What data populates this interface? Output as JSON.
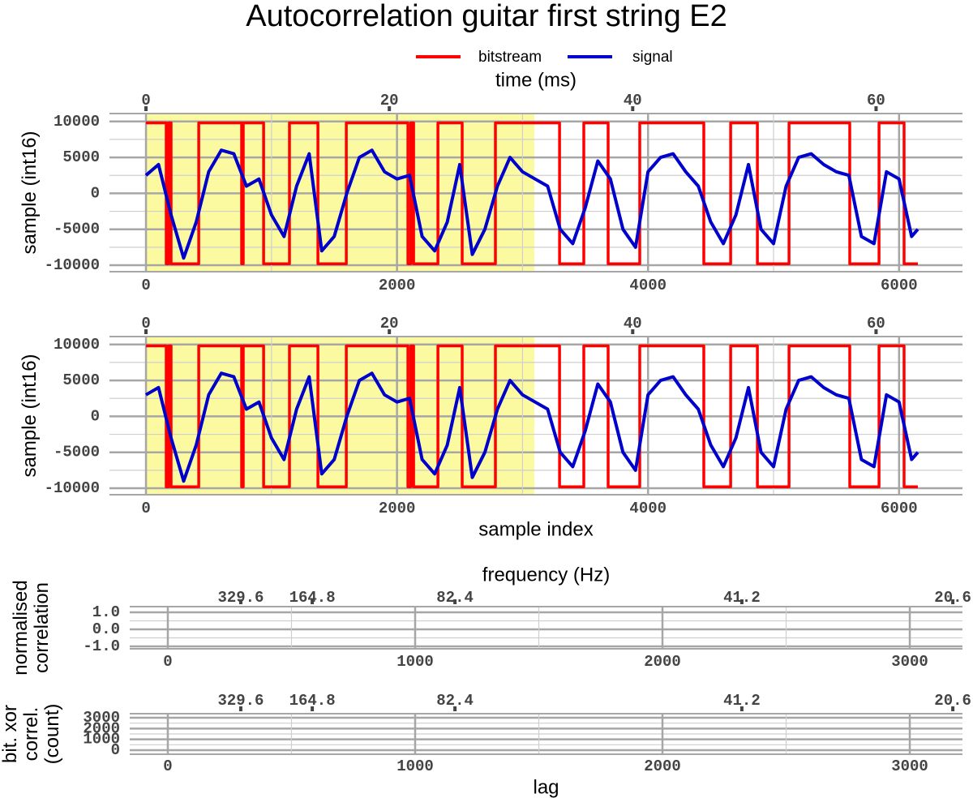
{
  "chart_data": [
    {
      "type": "line",
      "title": "Autocorrelation guitar first string E2",
      "legend": "top",
      "x2_label": "time (ms)",
      "y_label": [
        "sample (int16)"
      ],
      "xlim": [
        -291,
        6505
      ],
      "xticks": [
        0,
        2000,
        4000,
        6000
      ],
      "x2lim": [
        -3.0,
        67.1
      ],
      "x2ticks": [
        0,
        20,
        40,
        60
      ],
      "ylim": [
        -10900,
        11100
      ],
      "yticks": [
        -10000,
        -5000,
        0,
        5000,
        10000
      ],
      "grid": true,
      "shaded_range": [
        0,
        3094
      ],
      "shaded_color": "#fbfaa0",
      "series": [
        {
          "name": "bitstream",
          "color": "#ff0000",
          "x": [
            0,
            161,
            161,
            180,
            180,
            200,
            200,
            420,
            420,
            762,
            762,
            775,
            775,
            937,
            937,
            1143,
            1143,
            1370,
            1370,
            1596,
            1596,
            2087,
            2087,
            2110,
            2110,
            2132,
            2132,
            2326,
            2326,
            2519,
            2519,
            2784,
            2784,
            3295,
            3295,
            3488,
            3488,
            3682,
            3682,
            3934,
            3934,
            4444,
            4444,
            4658,
            4658,
            4871,
            4871,
            5123,
            5123,
            5607,
            5607,
            5840,
            5840,
            6040,
            6040,
            6150
          ],
          "values": [
            9800,
            9800,
            -9800,
            -9800,
            9800,
            9800,
            -9800,
            -9800,
            9800,
            9800,
            -9800,
            -9800,
            9800,
            9800,
            -9800,
            -9800,
            9800,
            9800,
            -9800,
            -9800,
            9800,
            9800,
            -9800,
            -9800,
            9800,
            9800,
            -9800,
            -9800,
            9800,
            9800,
            -9800,
            -9800,
            9800,
            9800,
            -9800,
            -9800,
            9800,
            9800,
            -9800,
            -9800,
            9800,
            9800,
            -9800,
            -9800,
            9800,
            9800,
            -9800,
            -9800,
            9800,
            9800,
            -9800,
            -9800,
            9800,
            9800,
            -9800,
            -9800
          ]
        },
        {
          "name": "signal",
          "color": "#0000cc",
          "x": [
            0,
            100,
            200,
            300,
            400,
            500,
            600,
            700,
            800,
            900,
            1000,
            1100,
            1200,
            1300,
            1400,
            1500,
            1600,
            1700,
            1800,
            1900,
            2000,
            2100,
            2200,
            2300,
            2400,
            2500,
            2600,
            2700,
            2800,
            2900,
            3000,
            3100,
            3200,
            3300,
            3400,
            3500,
            3600,
            3700,
            3800,
            3900,
            4000,
            4100,
            4200,
            4300,
            4400,
            4500,
            4600,
            4700,
            4800,
            4900,
            5000,
            5100,
            5200,
            5300,
            5400,
            5500,
            5600,
            5700,
            5800,
            5900,
            6000,
            6100,
            6150
          ],
          "values": [
            2500,
            4000,
            -3000,
            -9000,
            -4000,
            3000,
            6000,
            5500,
            1000,
            2000,
            -3000,
            -6000,
            1000,
            5500,
            -8000,
            -6000,
            0,
            5000,
            6000,
            3000,
            2000,
            2500,
            -6000,
            -8000,
            -4000,
            4000,
            -8500,
            -5000,
            1000,
            5000,
            3000,
            2000,
            1000,
            -5000,
            -7000,
            -2000,
            4500,
            2000,
            -5000,
            -7500,
            3000,
            5000,
            5500,
            3000,
            1000,
            -4000,
            -7000,
            -3000,
            4000,
            -5000,
            -7000,
            1000,
            5000,
            5500,
            4000,
            3000,
            2500,
            -6000,
            -7000,
            3000,
            2000,
            -6000,
            -5000
          ]
        }
      ]
    },
    {
      "type": "line",
      "x_label": "sample index",
      "y_label": [
        "sample (int16)"
      ],
      "xlim": [
        -291,
        6505
      ],
      "xticks": [
        0,
        2000,
        4000,
        6000
      ],
      "x2lim": [
        -3.0,
        67.1
      ],
      "x2ticks": [
        0,
        20,
        40,
        60
      ],
      "ylim": [
        -10900,
        11100
      ],
      "yticks": [
        -10000,
        -5000,
        0,
        5000,
        10000
      ],
      "grid": true,
      "shaded_range": [
        0,
        3094
      ],
      "shaded_color": "#fbfaa0",
      "series": [
        {
          "color": "#ff0000",
          "x": [
            0,
            161,
            161,
            180,
            180,
            200,
            200,
            420,
            420,
            762,
            762,
            775,
            775,
            937,
            937,
            1143,
            1143,
            1370,
            1370,
            1596,
            1596,
            2087,
            2087,
            2110,
            2110,
            2132,
            2132,
            2326,
            2326,
            2519,
            2519,
            2784,
            2784,
            3295,
            3295,
            3488,
            3488,
            3682,
            3682,
            3934,
            3934,
            4444,
            4444,
            4658,
            4658,
            4871,
            4871,
            5123,
            5123,
            5607,
            5607,
            5840,
            5840,
            6040,
            6040,
            6150
          ],
          "values": [
            9800,
            9800,
            -9800,
            -9800,
            9800,
            9800,
            -9800,
            -9800,
            9800,
            9800,
            -9800,
            -9800,
            9800,
            9800,
            -9800,
            -9800,
            9800,
            9800,
            -9800,
            -9800,
            9800,
            9800,
            -9800,
            -9800,
            9800,
            9800,
            -9800,
            -9800,
            9800,
            9800,
            -9800,
            -9800,
            9800,
            9800,
            -9800,
            -9800,
            9800,
            9800,
            -9800,
            -9800,
            9800,
            9800,
            -9800,
            -9800,
            9800,
            9800,
            -9800,
            -9800,
            9800,
            9800,
            -9800,
            -9800,
            9800,
            9800,
            -9800,
            -9800
          ]
        },
        {
          "color": "#0000cc",
          "x": [
            0,
            100,
            200,
            300,
            400,
            500,
            600,
            700,
            800,
            900,
            1000,
            1100,
            1200,
            1300,
            1400,
            1500,
            1600,
            1700,
            1800,
            1900,
            2000,
            2100,
            2200,
            2300,
            2400,
            2500,
            2600,
            2700,
            2800,
            2900,
            3000,
            3100,
            3200,
            3300,
            3400,
            3500,
            3600,
            3700,
            3800,
            3900,
            4000,
            4100,
            4200,
            4300,
            4400,
            4500,
            4600,
            4700,
            4800,
            4900,
            5000,
            5100,
            5200,
            5300,
            5400,
            5500,
            5600,
            5700,
            5800,
            5900,
            6000,
            6100,
            6150
          ],
          "values": [
            3000,
            4000,
            -3000,
            -9000,
            -4000,
            3000,
            6000,
            5500,
            1000,
            2000,
            -3000,
            -6000,
            1000,
            5500,
            -8000,
            -6000,
            0,
            5000,
            6000,
            3000,
            2000,
            2500,
            -6000,
            -8000,
            -4000,
            4000,
            -8500,
            -5000,
            1000,
            5000,
            3000,
            2000,
            1000,
            -5000,
            -7000,
            -2000,
            4500,
            2000,
            -5000,
            -7500,
            3000,
            5000,
            5500,
            3000,
            1000,
            -4000,
            -7000,
            -3000,
            4000,
            -5000,
            -7000,
            1000,
            5000,
            5500,
            4000,
            3000,
            2500,
            -6000,
            -7000,
            3000,
            2000,
            -6000,
            -5000
          ]
        }
      ]
    },
    {
      "type": "line",
      "x2_label": "frequency (Hz)",
      "y_label": [
        "normalised",
        "correlation"
      ],
      "xlim": [
        -154,
        3213
      ],
      "xticks": [
        0,
        1000,
        2000,
        3000
      ],
      "x2ticks": [
        {
          "value": 295,
          "label": "329.6"
        },
        {
          "value": 584,
          "label": "164.8"
        },
        {
          "value": 1161,
          "label": "82.4"
        },
        {
          "value": 2321,
          "label": "41.2"
        },
        {
          "value": 3174,
          "label": "20.6"
        }
      ],
      "ylim": [
        -1.14,
        1.33
      ],
      "yticks": [
        {
          "value": -1,
          "label": "-1.0"
        },
        {
          "value": 0,
          "label": "0.0"
        },
        {
          "value": 1,
          "label": "1.0"
        }
      ],
      "grid": true,
      "series": []
    },
    {
      "type": "line",
      "x_label": "lag",
      "y_label": [
        "bit. xor",
        "correl.",
        "(count)"
      ],
      "xlim": [
        -154,
        3213
      ],
      "xticks": [
        0,
        1000,
        2000,
        3000
      ],
      "x2ticks": [
        {
          "value": 295,
          "label": "329.6"
        },
        {
          "value": 584,
          "label": "164.8"
        },
        {
          "value": 1161,
          "label": "82.4"
        },
        {
          "value": 2321,
          "label": "41.2"
        },
        {
          "value": 3174,
          "label": "20.6"
        }
      ],
      "ylim": [
        -375,
        3375
      ],
      "yticks": [
        0,
        1000,
        2000,
        3000
      ],
      "grid": true,
      "series": []
    }
  ]
}
